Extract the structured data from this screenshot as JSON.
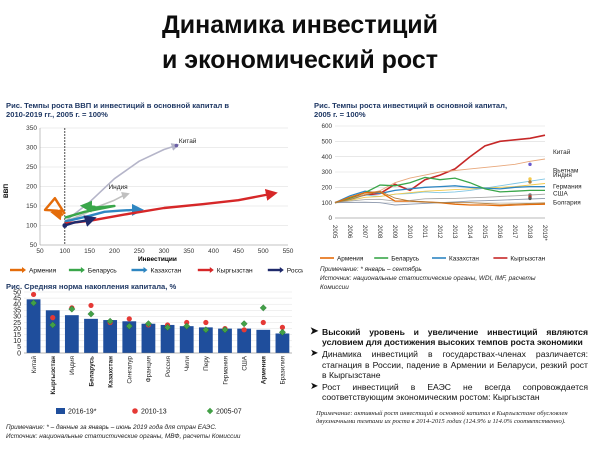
{
  "slide": {
    "title_line1": "Динамика инвестиций",
    "title_line2": "и экономический рост"
  },
  "chart1": {
    "caption_line1": "Рис.  Темпы роста ВВП и инвестиций в основной капитал в",
    "caption_line2": "2010-2019 гг., 2005 г. = 100%",
    "ylabel": "ВВП",
    "xlabel": "Инвестиции",
    "legend": [
      "Армения",
      "Беларусь",
      "Казахстан",
      "Кыргызстан",
      "Россия"
    ],
    "label_china": "Китай",
    "label_india": "Индия"
  },
  "chart2": {
    "caption_line1": "Рис.  Темпы роста инвестиций в основной капитал,",
    "caption_line2": "2005 г. = 100%",
    "labels": [
      "Китай",
      "Вьетнам",
      "Индия",
      "Германия",
      "США",
      "Болгария"
    ],
    "legend": [
      "Армения",
      "Беларусь",
      "Казахстан",
      "Кыргызстан"
    ],
    "note_line1": "Примечание: * январь – сентябрь",
    "note_line2": "Источник: национальные статистические органы, WDI, IMF, расчеты",
    "note_line3": "Комиссии"
  },
  "chart3": {
    "caption": "Рис.  Средняя норма накопления капитала, %",
    "legend": [
      "2016-19*",
      "2010-13",
      "2005-07"
    ],
    "note_line1": "Примечание: * – данные за январь – июнь 2019 года  для стран ЕАЭС.",
    "note_line2": "Источник: национальные статистические органы, МВФ, расчеты Комиссии"
  },
  "bullets": [
    "Высокий уровень и увеличение инвестиций являются условием для достижения высоких темпов роста экономики",
    "Динамика инвестиций в государствах-членах различается: стагнация в России, падение в Армении и Беларуси, резкий рост в Кыргызстане",
    "Рост инвестиций в ЕАЭС не всегда сопровождается соответствующим экономическим ростом: Кыргызстан"
  ],
  "footnote": "Примечание: активный рост инвестиций в основной капитал в Кыргызстане обусловлен двухзначными темпами их роста в 2014-2015 годах (124.9% и 114.0% соответственно).",
  "colors": {
    "armenia": "#e46c0a",
    "belarus": "#3aa64a",
    "kazakhstan": "#2e86c1",
    "kyrgyzstan": "#d62728",
    "russia": "#1f2a6b",
    "bar": "#1f4e9c",
    "marker_2010": "#e53935",
    "marker_2005": "#43a047",
    "caption": "#1f3864"
  },
  "chart_data": [
    {
      "type": "line",
      "title": "Темпы роста ВВП и инвестиций в основной капитал в 2010-2019 гг., 2005 г. = 100%",
      "xlabel": "Инвестиции",
      "ylabel": "ВВП",
      "xlim": [
        50,
        550
      ],
      "ylim": [
        50,
        350
      ],
      "xticks": [
        50,
        100,
        150,
        200,
        250,
        300,
        350,
        400,
        450,
        500,
        550
      ],
      "yticks": [
        50,
        100,
        150,
        200,
        250,
        300,
        350
      ],
      "series": [
        {
          "name": "Китай",
          "points": [
            [
              100,
              110
            ],
            [
              150,
              160
            ],
            [
              200,
              220
            ],
            [
              250,
              265
            ],
            [
              300,
              295
            ],
            [
              325,
              305
            ]
          ]
        },
        {
          "name": "Индия",
          "points": [
            [
              100,
              110
            ],
            [
              140,
              130
            ],
            [
              170,
              150
            ],
            [
              200,
              165
            ],
            [
              220,
              178
            ],
            [
              225,
              180
            ]
          ]
        },
        {
          "name": "Армения",
          "points": [
            [
              100,
              130
            ],
            [
              80,
              170
            ],
            [
              60,
              140
            ],
            [
              85,
              138
            ],
            [
              95,
              128
            ],
            [
              80,
              132
            ]
          ]
        },
        {
          "name": "Беларусь",
          "points": [
            [
              100,
              120
            ],
            [
              140,
              135
            ],
            [
              200,
              150
            ],
            [
              180,
              148
            ],
            [
              150,
              145
            ],
            [
              160,
              148
            ],
            [
              140,
              150
            ]
          ]
        },
        {
          "name": "Казахстан",
          "points": [
            [
              100,
              110
            ],
            [
              150,
              125
            ],
            [
              180,
              135
            ],
            [
              210,
              138
            ],
            [
              240,
              140
            ],
            [
              250,
              140
            ]
          ]
        },
        {
          "name": "Кыргызстан",
          "points": [
            [
              100,
              105
            ],
            [
              150,
              112
            ],
            [
              220,
              128
            ],
            [
              300,
              145
            ],
            [
              380,
              155
            ],
            [
              450,
              165
            ],
            [
              520,
              182
            ]
          ]
        },
        {
          "name": "Россия",
          "points": [
            [
              100,
              100
            ],
            [
              120,
              108
            ],
            [
              140,
              112
            ],
            [
              150,
              115
            ],
            [
              155,
              117
            ]
          ]
        }
      ]
    },
    {
      "type": "line",
      "title": "Темпы роста инвестиций в основной капитал, 2005 г. = 100%",
      "categories": [
        "2005",
        "2006",
        "2007",
        "2008",
        "2009",
        "2010",
        "2011",
        "2012",
        "2013",
        "2014",
        "2015",
        "2016",
        "2017",
        "2018",
        "2019*"
      ],
      "ylim": [
        0,
        600
      ],
      "yticks": [
        0,
        100,
        200,
        300,
        400,
        500,
        600
      ],
      "series": [
        {
          "name": "Кыргызстан",
          "values": [
            100,
            130,
            150,
            160,
            220,
            180,
            250,
            280,
            320,
            400,
            470,
            500,
            510,
            520,
            540
          ]
        },
        {
          "name": "Китай",
          "values": [
            100,
            124,
            155,
            178,
            230,
            260,
            280,
            300,
            310,
            320,
            330,
            340,
            350,
            370,
            385
          ]
        },
        {
          "name": "Вьетнам",
          "values": [
            100,
            115,
            150,
            140,
            155,
            160,
            170,
            165,
            170,
            180,
            195,
            210,
            225,
            240,
            255
          ]
        },
        {
          "name": "Индия",
          "values": [
            100,
            115,
            135,
            140,
            155,
            165,
            175,
            180,
            185,
            190,
            195,
            200,
            205,
            215,
            225
          ]
        },
        {
          "name": "Казахстан",
          "values": [
            100,
            145,
            175,
            160,
            180,
            190,
            200,
            205,
            210,
            200,
            195,
            190,
            200,
            205,
            205
          ]
        },
        {
          "name": "Германия",
          "values": [
            100,
            110,
            120,
            122,
            110,
            115,
            125,
            127,
            128,
            132,
            135,
            140,
            145,
            150,
            155
          ]
        },
        {
          "name": "США",
          "values": [
            100,
            102,
            103,
            100,
            85,
            90,
            95,
            100,
            105,
            110,
            113,
            116,
            120,
            124,
            128
          ]
        },
        {
          "name": "Беларусь",
          "values": [
            100,
            130,
            165,
            215,
            210,
            230,
            265,
            250,
            260,
            230,
            190,
            170,
            175,
            180,
            180
          ]
        },
        {
          "name": "Армения",
          "values": [
            100,
            135,
            165,
            170,
            110,
            110,
            105,
            100,
            90,
            85,
            85,
            80,
            85,
            88,
            90
          ]
        },
        {
          "name": "Болгария",
          "values": [
            100,
            120,
            150,
            175,
            130,
            110,
            105,
            100,
            100,
            100,
            95,
            90,
            92,
            95,
            98
          ]
        }
      ]
    },
    {
      "type": "bar",
      "title": "Средняя норма накопления капитала, %",
      "categories": [
        "Китай",
        "Кыргызстан",
        "Индия",
        "Беларусь",
        "Казахстан",
        "Сингапур",
        "Франция",
        "Россия",
        "Чили",
        "Перу",
        "Германия",
        "США",
        "Армения",
        "Бразилия"
      ],
      "ylim": [
        0,
        50
      ],
      "yticks": [
        0,
        5,
        10,
        15,
        20,
        25,
        30,
        35,
        40,
        45,
        50
      ],
      "series": [
        {
          "name": "2016-19*",
          "values": [
            44,
            35,
            31,
            28,
            27,
            26,
            24,
            23,
            22,
            21,
            20,
            20,
            19,
            16
          ]
        },
        {
          "name": "2010-13",
          "values": [
            48,
            29,
            37,
            39,
            25,
            28,
            23,
            23,
            25,
            25,
            20,
            19,
            25,
            21
          ]
        },
        {
          "name": "2005-07",
          "values": [
            41,
            23,
            36,
            32,
            26,
            22,
            24,
            21,
            22,
            19,
            19,
            24,
            37,
            17
          ]
        }
      ]
    }
  ]
}
